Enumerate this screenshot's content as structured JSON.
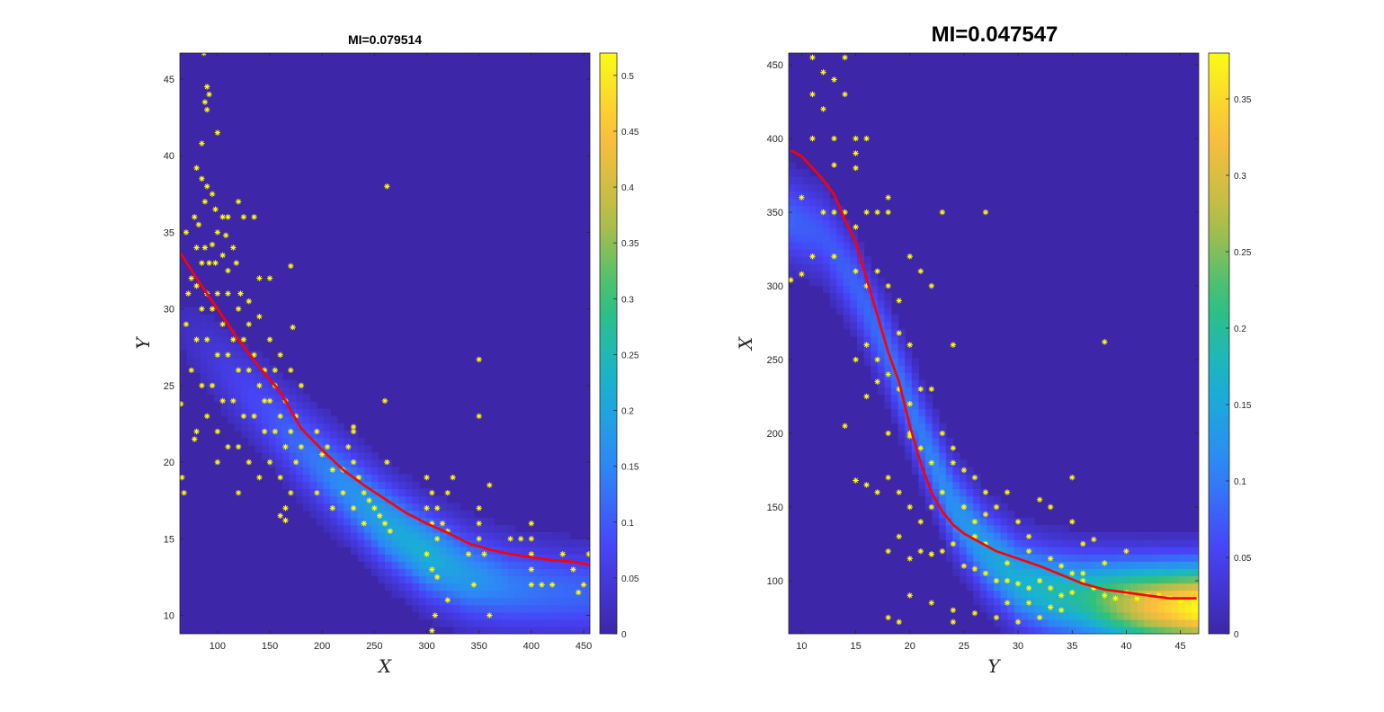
{
  "colors": {
    "background": "#3e26a8",
    "curve": "#ff0000",
    "points": "#ffff00",
    "colormap": [
      "#3e26a8",
      "#4743f7",
      "#2e87f7",
      "#18b2d3",
      "#2fc17c",
      "#b5bd48",
      "#fcbe3d",
      "#f9fb15"
    ]
  },
  "chart_data": [
    {
      "type": "heatmap",
      "title": "MI=0.079514",
      "xlabel": "X",
      "ylabel": "Y",
      "xlim": [
        64,
        456
      ],
      "ylim": [
        8.8,
        46.7
      ],
      "xticks": [
        "100",
        "150",
        "200",
        "250",
        "300",
        "350",
        "400",
        "450"
      ],
      "yticks": [
        "10",
        "15",
        "20",
        "25",
        "30",
        "35",
        "40",
        "45"
      ],
      "colorbar": {
        "range": [
          0,
          0.52
        ],
        "ticks": [
          "0",
          "0.05",
          "0.1",
          "0.15",
          "0.2",
          "0.25",
          "0.3",
          "0.35",
          "0.4",
          "0.45",
          "0.5"
        ]
      },
      "fit_curve": {
        "x": [
          65,
          80,
          100,
          120,
          140,
          160,
          180,
          200,
          220,
          240,
          260,
          280,
          300,
          320,
          340,
          360,
          380,
          400,
          420,
          440,
          456
        ],
        "y": [
          33.6,
          32.0,
          30.0,
          28.0,
          26.2,
          24.6,
          22.2,
          20.8,
          19.5,
          18.5,
          17.6,
          16.7,
          16.0,
          15.4,
          14.7,
          14.3,
          14.0,
          13.8,
          13.6,
          13.5,
          13.3
        ]
      },
      "density_ridge": {
        "x": [
          64,
          100,
          140,
          180,
          220,
          260,
          300,
          340,
          380,
          420,
          456
        ],
        "y": [
          29.0,
          26.5,
          23.8,
          21.0,
          18.5,
          16.0,
          14.0,
          12.6,
          11.9,
          11.6,
          11.5
        ],
        "peak": [
          0.02,
          0.05,
          0.08,
          0.12,
          0.16,
          0.2,
          0.22,
          0.18,
          0.14,
          0.12,
          0.11
        ]
      },
      "points": [
        [
          87,
          46.7
        ],
        [
          90,
          44.5
        ],
        [
          92,
          44
        ],
        [
          88,
          43.5
        ],
        [
          90,
          43
        ],
        [
          85,
          40.8
        ],
        [
          100,
          41.5
        ],
        [
          80,
          39.2
        ],
        [
          85,
          38.5
        ],
        [
          90,
          38
        ],
        [
          95,
          37.5
        ],
        [
          88,
          37
        ],
        [
          98,
          36.5
        ],
        [
          105,
          36
        ],
        [
          110,
          36
        ],
        [
          120,
          37
        ],
        [
          125,
          36
        ],
        [
          135,
          36
        ],
        [
          78,
          36
        ],
        [
          82,
          35.5
        ],
        [
          100,
          35
        ],
        [
          108,
          34.8
        ],
        [
          115,
          34
        ],
        [
          95,
          34.2
        ],
        [
          88,
          34
        ],
        [
          80,
          34
        ],
        [
          70,
          35
        ],
        [
          85,
          33
        ],
        [
          92,
          33
        ],
        [
          98,
          33
        ],
        [
          105,
          33.5
        ],
        [
          110,
          32.5
        ],
        [
          118,
          33
        ],
        [
          122,
          31
        ],
        [
          130,
          30.5
        ],
        [
          140,
          32
        ],
        [
          150,
          32
        ],
        [
          170,
          32.8
        ],
        [
          75,
          32
        ],
        [
          80,
          31.5
        ],
        [
          90,
          31
        ],
        [
          100,
          31
        ],
        [
          110,
          31
        ],
        [
          120,
          30
        ],
        [
          130,
          29
        ],
        [
          140,
          29.5
        ],
        [
          150,
          28
        ],
        [
          160,
          27
        ],
        [
          170,
          26
        ],
        [
          180,
          25
        ],
        [
          72,
          31
        ],
        [
          85,
          30
        ],
        [
          95,
          30
        ],
        [
          105,
          29
        ],
        [
          115,
          28
        ],
        [
          125,
          28
        ],
        [
          135,
          27
        ],
        [
          145,
          26
        ],
        [
          155,
          25
        ],
        [
          165,
          24
        ],
        [
          175,
          23
        ],
        [
          70,
          29
        ],
        [
          80,
          28
        ],
        [
          90,
          28
        ],
        [
          100,
          27
        ],
        [
          110,
          27
        ],
        [
          120,
          26
        ],
        [
          130,
          26
        ],
        [
          140,
          25
        ],
        [
          150,
          24
        ],
        [
          160,
          23
        ],
        [
          170,
          22
        ],
        [
          180,
          21
        ],
        [
          75,
          26
        ],
        [
          85,
          25
        ],
        [
          95,
          25
        ],
        [
          105,
          24
        ],
        [
          115,
          24
        ],
        [
          125,
          23
        ],
        [
          135,
          23
        ],
        [
          145,
          22
        ],
        [
          155,
          22
        ],
        [
          165,
          21
        ],
        [
          175,
          20
        ],
        [
          80,
          22
        ],
        [
          90,
          23
        ],
        [
          100,
          22
        ],
        [
          110,
          21
        ],
        [
          120,
          21
        ],
        [
          130,
          20
        ],
        [
          140,
          19
        ],
        [
          150,
          20
        ],
        [
          160,
          19
        ],
        [
          170,
          18
        ],
        [
          65,
          23.8
        ],
        [
          66,
          19
        ],
        [
          68,
          18
        ],
        [
          78,
          21.5
        ],
        [
          100,
          20
        ],
        [
          120,
          18
        ],
        [
          145,
          24
        ],
        [
          155,
          26
        ],
        [
          160,
          16.5
        ],
        [
          165,
          16.2
        ],
        [
          172,
          28.8
        ],
        [
          165,
          17
        ],
        [
          195,
          22
        ],
        [
          200,
          20.5
        ],
        [
          205,
          21
        ],
        [
          210,
          19.5
        ],
        [
          220,
          18
        ],
        [
          230,
          17
        ],
        [
          230,
          22.3
        ],
        [
          225,
          21
        ],
        [
          230,
          20
        ],
        [
          235,
          19
        ],
        [
          240,
          18
        ],
        [
          245,
          17.5
        ],
        [
          250,
          17
        ],
        [
          255,
          16.5
        ],
        [
          260,
          16
        ],
        [
          265,
          15.5
        ],
        [
          262,
          38
        ],
        [
          260,
          24
        ],
        [
          262,
          20
        ],
        [
          240,
          16
        ],
        [
          230,
          22
        ],
        [
          195,
          18
        ],
        [
          210,
          17
        ],
        [
          220,
          19.5
        ],
        [
          300,
          19
        ],
        [
          305,
          18
        ],
        [
          310,
          17
        ],
        [
          315,
          16
        ],
        [
          320,
          15.5
        ],
        [
          300,
          14
        ],
        [
          305,
          13
        ],
        [
          310,
          12.5
        ],
        [
          320,
          18
        ],
        [
          325,
          19
        ],
        [
          300,
          17
        ],
        [
          305,
          16
        ],
        [
          310,
          15
        ],
        [
          308,
          10
        ],
        [
          305,
          9
        ],
        [
          320,
          11
        ],
        [
          340,
          14
        ],
        [
          345,
          12
        ],
        [
          350,
          26.7
        ],
        [
          350,
          23
        ],
        [
          350,
          17
        ],
        [
          350,
          16
        ],
        [
          350,
          15
        ],
        [
          355,
          14
        ],
        [
          360,
          18.5
        ],
        [
          360,
          10
        ],
        [
          380,
          15
        ],
        [
          390,
          15
        ],
        [
          400,
          16
        ],
        [
          400,
          15
        ],
        [
          400,
          14
        ],
        [
          400,
          13
        ],
        [
          400,
          12
        ],
        [
          410,
          12
        ],
        [
          420,
          12
        ],
        [
          430,
          14
        ],
        [
          440,
          13
        ],
        [
          445,
          11.5
        ],
        [
          450,
          12
        ],
        [
          455,
          14
        ]
      ]
    },
    {
      "type": "heatmap",
      "title": "MI=0.047547",
      "xlabel": "Y",
      "ylabel": "X",
      "xlim": [
        8.8,
        46.7
      ],
      "ylim": [
        64,
        458
      ],
      "xticks": [
        "10",
        "15",
        "20",
        "25",
        "30",
        "35",
        "40",
        "45"
      ],
      "yticks": [
        "100",
        "150",
        "200",
        "250",
        "300",
        "350",
        "400",
        "450"
      ],
      "colorbar": {
        "range": [
          0,
          0.38
        ],
        "ticks": [
          "0",
          "0.05",
          "0.1",
          "0.15",
          "0.2",
          "0.25",
          "0.3",
          "0.35"
        ]
      },
      "fit_curve": {
        "x": [
          9,
          10,
          11,
          12,
          13,
          14,
          15,
          16,
          17,
          18,
          19,
          20,
          21,
          22,
          23,
          24,
          25,
          26,
          28,
          30,
          32,
          34,
          36,
          38,
          40,
          42,
          44,
          46.5
        ],
        "y": [
          392,
          388,
          380,
          372,
          362,
          345,
          330,
          305,
          280,
          255,
          235,
          205,
          180,
          160,
          147,
          138,
          132,
          128,
          120,
          115,
          110,
          104,
          98,
          94,
          92,
          90,
          88,
          88
        ]
      },
      "density_ridge": {
        "x": [
          9,
          12,
          15,
          18,
          21,
          24,
          27,
          30,
          33,
          36,
          39,
          42,
          46.5
        ],
        "y": [
          345,
          335,
          300,
          255,
          200,
          150,
          120,
          100,
          92,
          88,
          85,
          83,
          82
        ],
        "peak": [
          0.08,
          0.07,
          0.08,
          0.09,
          0.1,
          0.12,
          0.14,
          0.16,
          0.18,
          0.2,
          0.26,
          0.32,
          0.38
        ]
      },
      "points": [
        [
          11,
          455
        ],
        [
          14,
          455
        ],
        [
          12,
          445
        ],
        [
          13,
          440
        ],
        [
          14,
          430
        ],
        [
          11,
          430
        ],
        [
          12,
          420
        ],
        [
          11,
          400
        ],
        [
          13,
          400
        ],
        [
          15,
          400
        ],
        [
          16,
          400
        ],
        [
          15,
          390
        ],
        [
          15,
          380
        ],
        [
          13,
          382
        ],
        [
          10,
          360
        ],
        [
          12,
          350
        ],
        [
          14,
          350
        ],
        [
          16,
          350
        ],
        [
          17,
          350
        ],
        [
          18,
          350
        ],
        [
          15,
          340
        ],
        [
          13,
          350
        ],
        [
          11,
          320
        ],
        [
          13,
          320
        ],
        [
          15,
          310
        ],
        [
          16,
          300
        ],
        [
          17,
          310
        ],
        [
          18,
          300
        ],
        [
          19,
          290
        ],
        [
          20,
          320
        ],
        [
          21,
          310
        ],
        [
          22,
          300
        ],
        [
          9,
          304
        ],
        [
          10,
          308
        ],
        [
          18,
          360
        ],
        [
          23,
          350
        ],
        [
          27,
          350
        ],
        [
          16,
          260
        ],
        [
          17,
          250
        ],
        [
          18,
          240
        ],
        [
          19,
          230
        ],
        [
          20,
          220
        ],
        [
          21,
          230
        ],
        [
          22,
          230
        ],
        [
          20,
          260
        ],
        [
          24,
          260
        ],
        [
          19,
          268
        ],
        [
          16,
          225
        ],
        [
          17,
          235
        ],
        [
          15,
          250
        ],
        [
          18,
          200
        ],
        [
          20,
          200
        ],
        [
          21,
          190
        ],
        [
          22,
          180
        ],
        [
          24,
          180
        ],
        [
          25,
          175
        ],
        [
          26,
          170
        ],
        [
          27,
          160
        ],
        [
          23,
          200
        ],
        [
          24,
          190
        ],
        [
          15,
          168
        ],
        [
          16,
          165
        ],
        [
          17,
          160
        ],
        [
          18,
          170
        ],
        [
          19,
          160
        ],
        [
          20,
          150
        ],
        [
          21,
          140
        ],
        [
          22,
          150
        ],
        [
          23,
          160
        ],
        [
          25,
          150
        ],
        [
          26,
          140
        ],
        [
          27,
          145
        ],
        [
          28,
          150
        ],
        [
          29,
          160
        ],
        [
          30,
          140
        ],
        [
          31,
          130
        ],
        [
          32,
          155
        ],
        [
          33,
          150
        ],
        [
          35,
          140
        ],
        [
          35,
          170
        ],
        [
          18,
          120
        ],
        [
          19,
          130
        ],
        [
          20,
          115
        ],
        [
          21,
          120
        ],
        [
          22,
          118
        ],
        [
          23,
          120
        ],
        [
          24,
          125
        ],
        [
          25,
          110
        ],
        [
          26,
          108
        ],
        [
          27,
          105
        ],
        [
          28,
          100
        ],
        [
          29,
          100
        ],
        [
          30,
          98
        ],
        [
          31,
          95
        ],
        [
          32,
          100
        ],
        [
          33,
          95
        ],
        [
          34,
          90
        ],
        [
          35,
          92
        ],
        [
          36,
          100
        ],
        [
          37,
          95
        ],
        [
          38,
          90
        ],
        [
          39,
          88
        ],
        [
          40,
          92
        ],
        [
          41,
          88
        ],
        [
          42,
          90
        ],
        [
          43,
          90
        ],
        [
          44,
          88
        ],
        [
          45,
          86
        ],
        [
          20,
          90
        ],
        [
          22,
          85
        ],
        [
          24,
          80
        ],
        [
          26,
          78
        ],
        [
          28,
          75
        ],
        [
          30,
          72
        ],
        [
          32,
          75
        ],
        [
          34,
          80
        ],
        [
          18,
          75
        ],
        [
          19,
          72
        ],
        [
          24,
          72
        ],
        [
          29,
          85
        ],
        [
          31,
          85
        ],
        [
          33,
          82
        ],
        [
          36,
          125
        ],
        [
          38,
          112
        ],
        [
          37,
          128
        ],
        [
          40,
          120
        ],
        [
          26,
          130
        ],
        [
          27,
          125
        ],
        [
          34,
          110
        ],
        [
          36,
          105
        ],
        [
          38,
          262
        ],
        [
          14,
          205
        ],
        [
          20,
          198
        ],
        [
          22,
          118
        ],
        [
          29,
          112
        ],
        [
          31,
          120
        ],
        [
          33,
          115
        ],
        [
          35,
          105
        ]
      ]
    }
  ]
}
